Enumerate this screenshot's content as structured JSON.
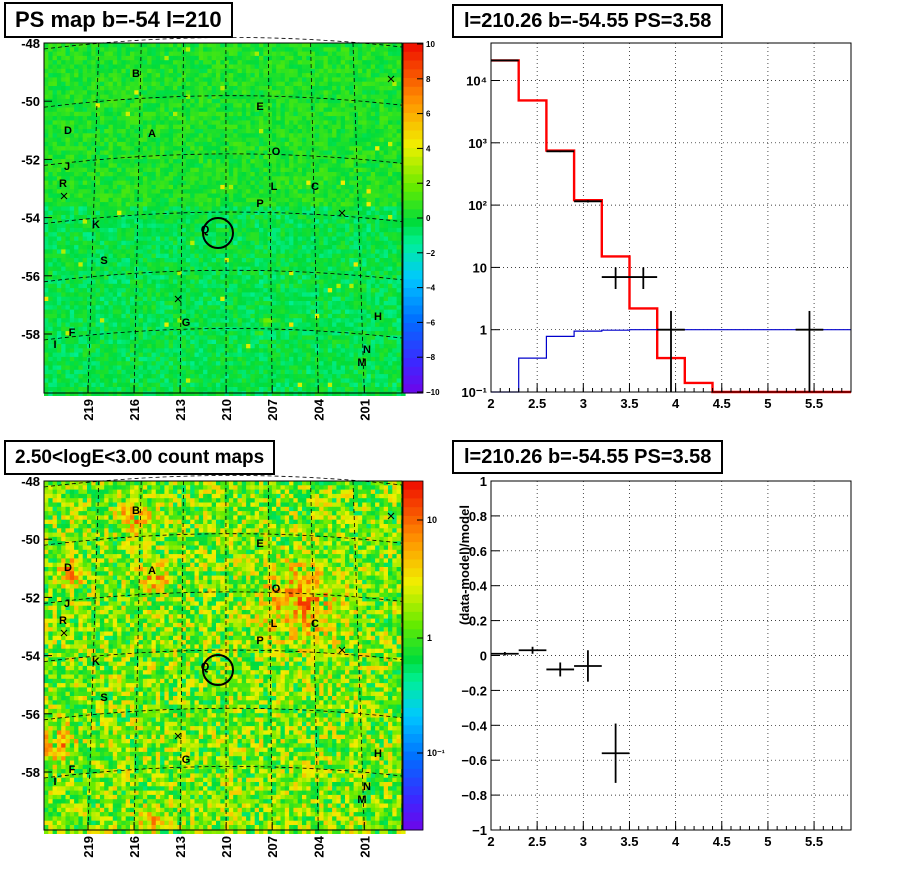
{
  "panels": {
    "ps_map": {
      "title": "PS map b=-54 l=210",
      "b_ticks": [
        "-48",
        "-50",
        "-52",
        "-54",
        "-56",
        "-58"
      ],
      "l_ticks": [
        "219",
        "216",
        "213",
        "210",
        "207",
        "204",
        "201"
      ],
      "colorbar_ticks": [
        "10",
        "8",
        "6",
        "4",
        "2",
        "0",
        "−2",
        "−4",
        "−6",
        "−8",
        "−10"
      ],
      "sources": [
        "B",
        "E",
        "D",
        "A",
        "O",
        "J",
        "R",
        "L",
        "C",
        "P",
        "K",
        "Q",
        "S",
        "G",
        "H",
        "F",
        "I",
        "N",
        "M"
      ]
    },
    "count_map": {
      "title": "2.50<logE<3.00 count maps",
      "b_ticks": [
        "-48",
        "-50",
        "-52",
        "-54",
        "-56",
        "-58"
      ],
      "l_ticks": [
        "219",
        "216",
        "213",
        "210",
        "207",
        "204",
        "201"
      ],
      "colorbar_ticks": [
        "10",
        "1",
        "10⁻¹"
      ],
      "sources": [
        "B",
        "E",
        "D",
        "A",
        "O",
        "J",
        "R",
        "L",
        "C",
        "P",
        "K",
        "Q",
        "S",
        "G",
        "H",
        "F",
        "I",
        "N",
        "M"
      ]
    },
    "spectrum": {
      "title": "l=210.26 b=-54.55 PS=3.58",
      "x_ticks": [
        "2",
        "2.5",
        "3",
        "3.5",
        "4",
        "4.5",
        "5",
        "5.5"
      ],
      "y_ticks": [
        "10⁻¹",
        "1",
        "10",
        "10²",
        "10³",
        "10⁴"
      ]
    },
    "residual": {
      "title": "l=210.26 b=-54.55 PS=3.58",
      "ylabel": "(data-model)/model",
      "x_ticks": [
        "2",
        "2.5",
        "3",
        "3.5",
        "4",
        "4.5",
        "5",
        "5.5"
      ],
      "y_ticks": [
        "1",
        "0.8",
        "0.6",
        "0.4",
        "0.2",
        "0",
        "−0.2",
        "−0.4",
        "−0.6",
        "−0.8",
        "−1"
      ]
    }
  },
  "chart_data": [
    {
      "type": "heatmap",
      "title": "PS map b=-54 l=210",
      "xlabel": "",
      "ylabel": "",
      "x_ticks": [
        219,
        216,
        213,
        210,
        207,
        204,
        201
      ],
      "y_ticks": [
        -48,
        -50,
        -52,
        -54,
        -56,
        -58
      ],
      "color_range": [
        -10,
        10
      ],
      "marked_position": {
        "l": 210.26,
        "b": -54.55
      },
      "source_labels": [
        "B",
        "E",
        "D",
        "A",
        "O",
        "J",
        "R",
        "L",
        "C",
        "P",
        "K",
        "Q",
        "S",
        "G",
        "H",
        "F",
        "I",
        "N",
        "M"
      ]
    },
    {
      "type": "heatmap",
      "title": "2.50<logE<3.00 count maps",
      "xlabel": "",
      "ylabel": "",
      "x_ticks": [
        219,
        216,
        213,
        210,
        207,
        204,
        201
      ],
      "y_ticks": [
        -48,
        -50,
        -52,
        -54,
        -56,
        -58
      ],
      "color_scale": "log",
      "color_range": [
        0.03,
        20
      ],
      "marked_position": {
        "l": 210.26,
        "b": -54.55
      },
      "source_labels": [
        "B",
        "E",
        "D",
        "A",
        "O",
        "J",
        "R",
        "L",
        "C",
        "P",
        "K",
        "Q",
        "S",
        "G",
        "H",
        "F",
        "I",
        "N",
        "M"
      ]
    },
    {
      "type": "line",
      "title": "l=210.26 b=-54.55 PS=3.58",
      "xlabel": "",
      "ylabel": "",
      "xlim": [
        2,
        5.9
      ],
      "ylim": [
        0.1,
        40000
      ],
      "y_scale": "log",
      "grid": true,
      "series": [
        {
          "color": "#ff0000",
          "style": "step",
          "edges": [
            2,
            2.3,
            2.6,
            2.9,
            3.2,
            3.5,
            3.8,
            4.1,
            4.4,
            4.7,
            5.0,
            5.3,
            5.6,
            5.9
          ],
          "values": [
            21000,
            4800,
            750,
            120,
            15,
            2.2,
            0.35,
            0.14,
            0.1,
            0.1,
            0.1,
            0.1,
            0.1
          ]
        },
        {
          "color": "#0000cc",
          "style": "step",
          "edges": [
            2,
            2.3,
            2.6,
            2.9,
            3.2,
            3.5,
            3.8,
            4.1,
            4.4,
            4.7,
            5.0,
            5.3,
            5.6,
            5.9
          ],
          "values": [
            0.1,
            0.35,
            0.78,
            0.95,
            0.98,
            1.0,
            1.0,
            1.0,
            1.0,
            1.0,
            1.0,
            1.0,
            1.0
          ]
        },
        {
          "color": "#000000",
          "style": "points",
          "points": [
            {
              "x": 2.15,
              "y": 21000,
              "xerr": 0.15,
              "ylo": 20800,
              "yhi": 21200
            },
            {
              "x": 2.75,
              "y": 730,
              "xerr": 0.15,
              "ylo": 710,
              "yhi": 750
            },
            {
              "x": 3.05,
              "y": 115,
              "xerr": 0.15,
              "ylo": 110,
              "yhi": 120
            },
            {
              "x": 3.35,
              "y": 7,
              "xerr": 0.15,
              "ylo": 4.5,
              "yhi": 10
            },
            {
              "x": 3.65,
              "y": 7,
              "xerr": 0.15,
              "ylo": 4.5,
              "yhi": 10
            },
            {
              "x": 3.95,
              "y": 1,
              "xerr": 0.15,
              "ylo": 0.1,
              "yhi": 2
            },
            {
              "x": 5.45,
              "y": 1,
              "xerr": 0.15,
              "ylo": 0.1,
              "yhi": 2
            }
          ]
        }
      ]
    },
    {
      "type": "scatter",
      "title": "l=210.26 b=-54.55 PS=3.58",
      "xlabel": "",
      "ylabel": "(data-model)/model",
      "xlim": [
        2,
        5.9
      ],
      "ylim": [
        -1,
        1
      ],
      "grid": true,
      "points": [
        {
          "x": 2.15,
          "y": 0.01,
          "xerr": 0.15,
          "yerr": 0.01
        },
        {
          "x": 2.45,
          "y": 0.03,
          "xerr": 0.15,
          "yerr": 0.02
        },
        {
          "x": 2.75,
          "y": -0.08,
          "xerr": 0.15,
          "yerr": 0.04
        },
        {
          "x": 3.05,
          "y": -0.06,
          "xerr": 0.15,
          "yerr": 0.09
        },
        {
          "x": 3.35,
          "y": -0.56,
          "xerr": 0.15,
          "yerr": 0.17
        }
      ]
    }
  ]
}
